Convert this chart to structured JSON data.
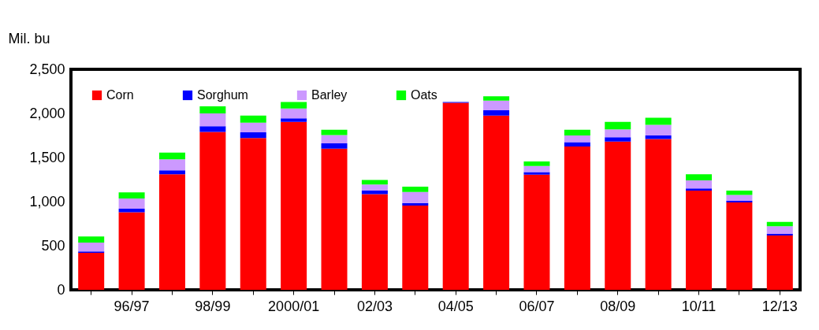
{
  "chart_data": {
    "type": "bar",
    "stacked": true,
    "ylabel": "Mil. bu",
    "categories": [
      null,
      "96/97",
      null,
      "98/99",
      null,
      "2000/01",
      null,
      "02/03",
      null,
      "04/05",
      null,
      "06/07",
      null,
      "08/09",
      null,
      "10/11",
      null,
      "12/13"
    ],
    "series": [
      {
        "name": "Corn",
        "color": "#ff0000",
        "values": [
          420,
          880,
          1310,
          1790,
          1720,
          1905,
          1600,
          1085,
          955,
          2120,
          1975,
          1305,
          1625,
          1680,
          1710,
          1125,
          990,
          615
        ]
      },
      {
        "name": "Sorghum",
        "color": "#0000ff",
        "values": [
          15,
          40,
          45,
          65,
          65,
          40,
          60,
          40,
          30,
          10,
          60,
          30,
          50,
          50,
          40,
          25,
          20,
          20
        ]
      },
      {
        "name": "Barley",
        "color": "#cc99ff",
        "values": [
          100,
          115,
          125,
          145,
          110,
          110,
          95,
          70,
          125,
          null,
          110,
          70,
          75,
          90,
          120,
          90,
          65,
          85
        ]
      },
      {
        "name": "Oats",
        "color": "#00ff00",
        "values": [
          70,
          70,
          75,
          80,
          80,
          75,
          60,
          50,
          60,
          null,
          50,
          50,
          65,
          85,
          80,
          70,
          50,
          50
        ]
      }
    ],
    "ylim": [
      0,
      2500
    ],
    "yticks": [
      0,
      500,
      {
        "value": 1000,
        "label": "1,000"
      },
      {
        "value": 1500,
        "label": "1,500"
      },
      {
        "value": 2000,
        "label": "2,000"
      },
      {
        "value": 2500,
        "label": "2,500"
      }
    ],
    "grid": false,
    "legend": "top left"
  }
}
